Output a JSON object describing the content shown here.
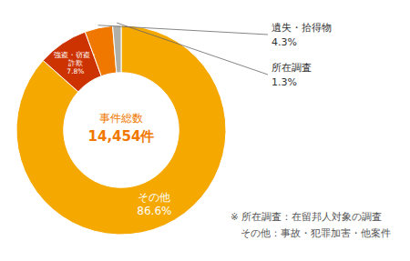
{
  "chart_data": {
    "type": "pie",
    "categories": [
      "その他",
      "強盗・窃盗・\n詐欺",
      "遺失・拾得物",
      "所在調査"
    ],
    "values": [
      86.6,
      7.8,
      4.3,
      1.3
    ],
    "value_labels": [
      "86.6%",
      "7.8%",
      "4.3%",
      "1.3%"
    ],
    "colors": [
      "#F5A800",
      "#CC3300",
      "#F07800",
      "#B0B0A8"
    ],
    "data_labels": true,
    "annotations": [
      {
        "text": "事件総数",
        "color": "#F07800"
      },
      {
        "text": "14,454件",
        "color": "#F07800"
      },
      {
        "text": "※ 所在調査：在留邦人対象の調査",
        "color": "#555555"
      },
      {
        "text": "　その他：事故・犯罪加害・他案件",
        "color": "#555555"
      }
    ]
  }
}
